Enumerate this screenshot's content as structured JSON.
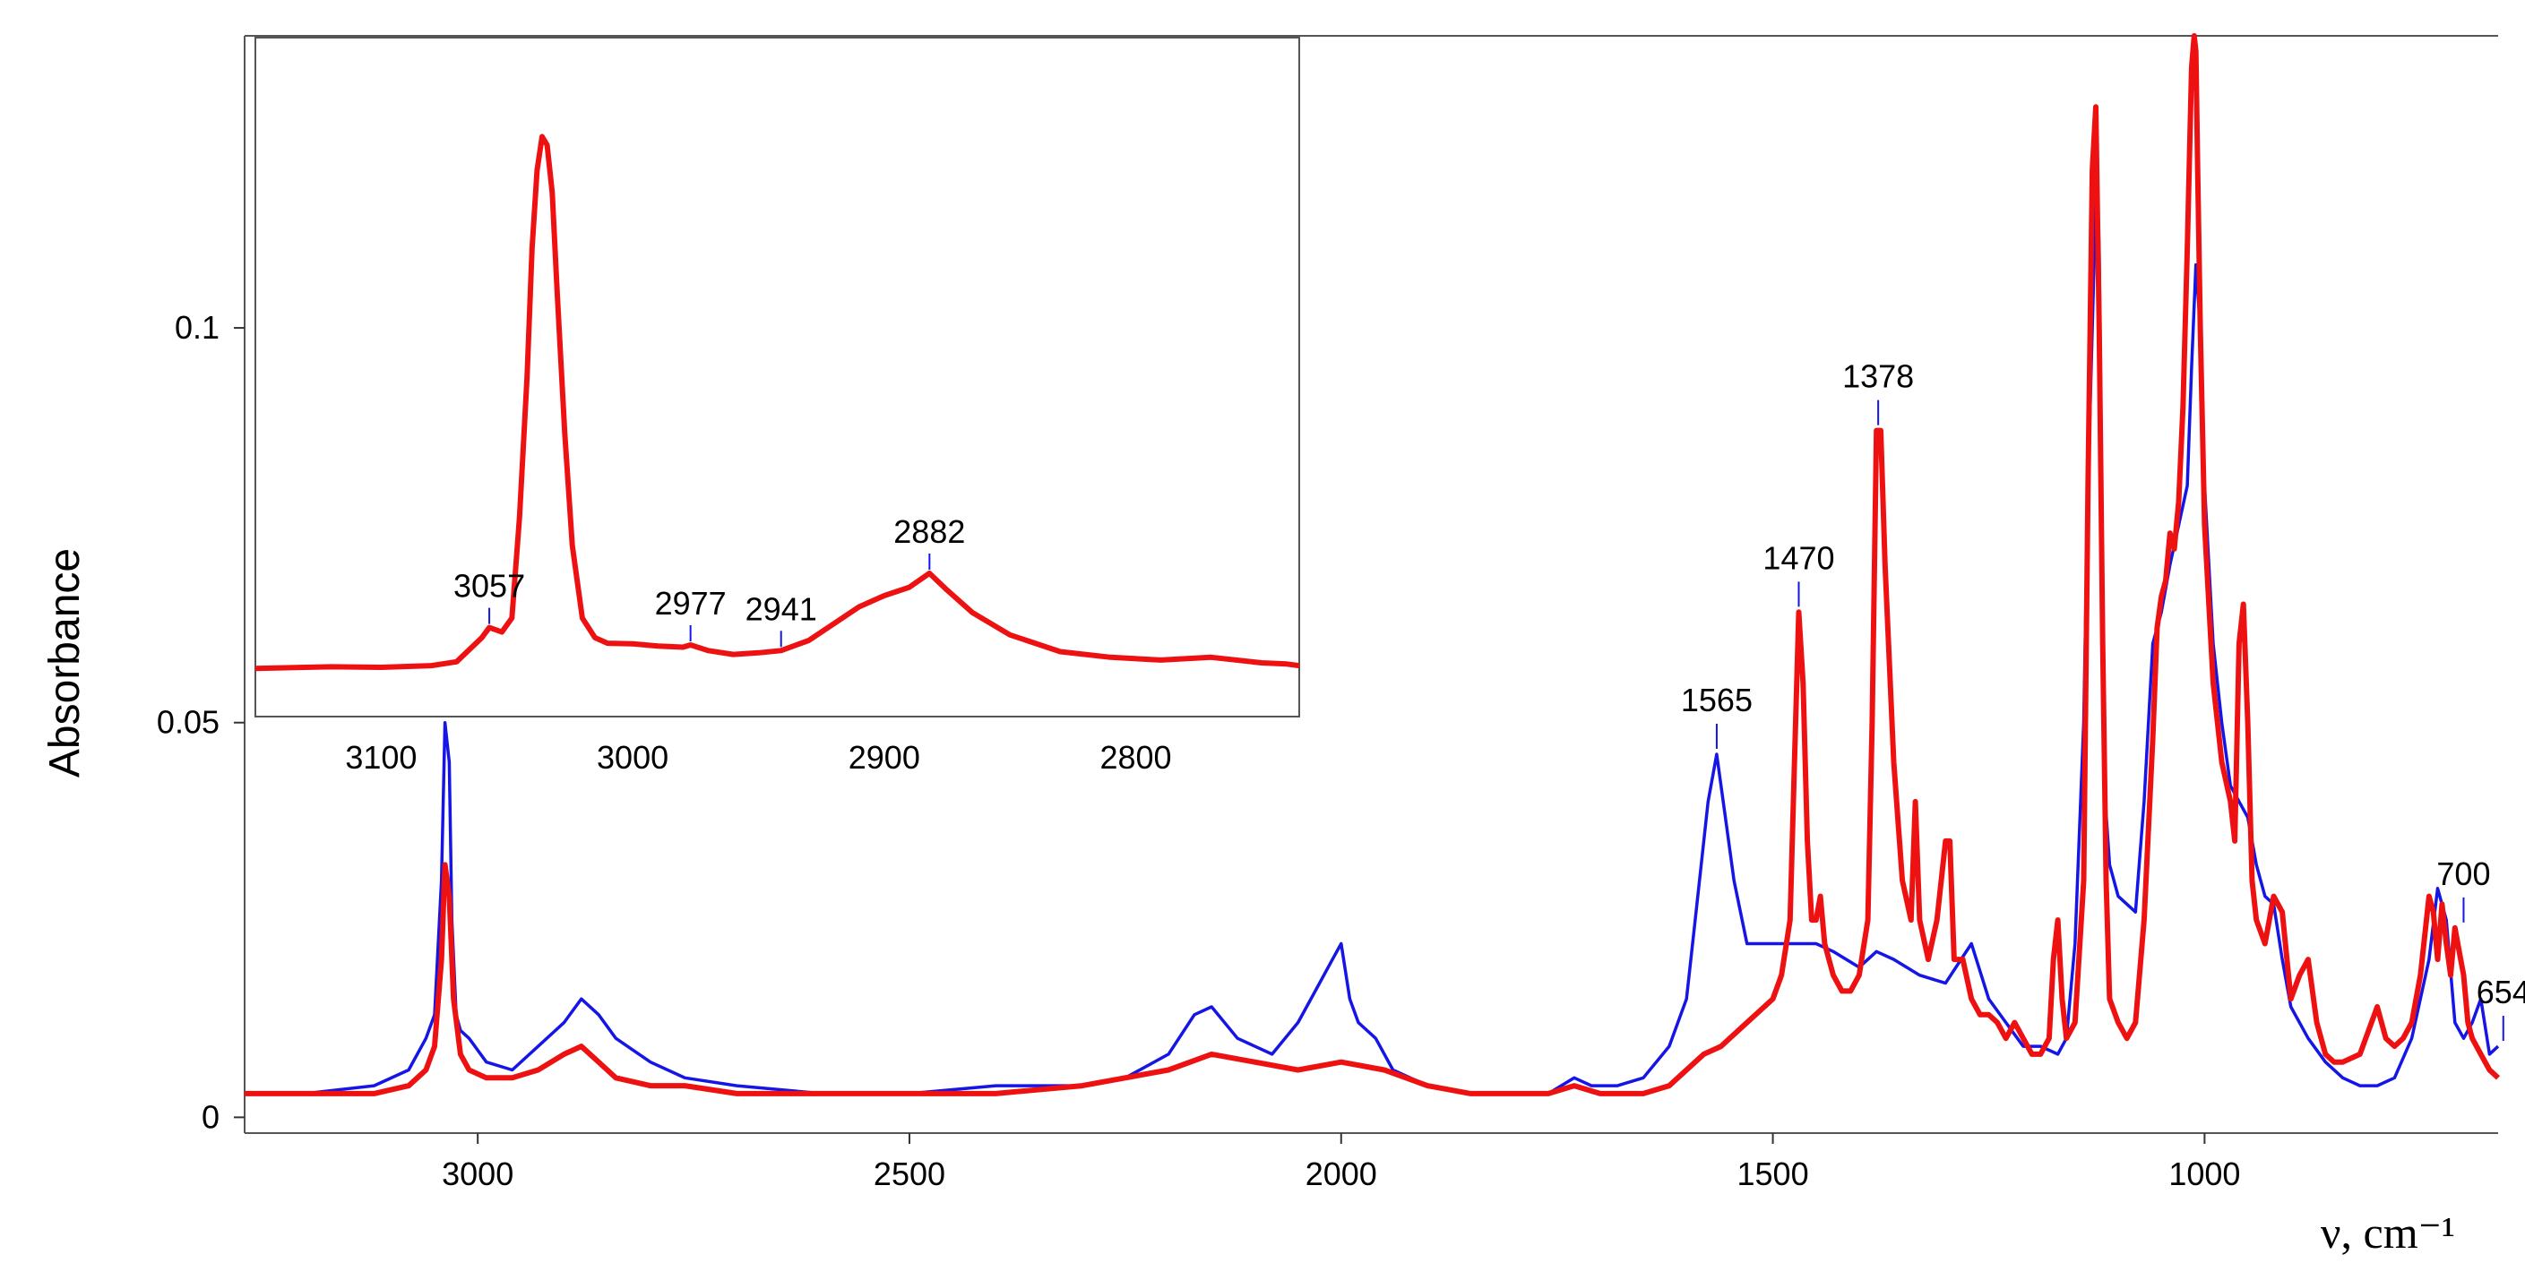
{
  "chart_data": [
    {
      "id": "main",
      "type": "line",
      "title": "",
      "xlabel": "ν, cm⁻¹",
      "ylabel": "Absorbance",
      "xlim": [
        3270,
        660
      ],
      "ylim": [
        -0.002,
        0.137
      ],
      "xticks": [
        3000,
        2500,
        2000,
        1500,
        1000
      ],
      "yticks": [
        0,
        0.05,
        0.1
      ],
      "ytick_labels": [
        "0",
        "0.05",
        "0.1"
      ],
      "grid": false,
      "legend": "none",
      "series": [
        {
          "color": "#1515e6",
          "x": [
            3270,
            3200,
            3120,
            3080,
            3060,
            3050,
            3042,
            3038,
            3033,
            3030,
            3025,
            3020,
            3010,
            2990,
            2960,
            2930,
            2900,
            2880,
            2860,
            2840,
            2800,
            2760,
            2700,
            2600,
            2500,
            2400,
            2300,
            2250,
            2200,
            2170,
            2150,
            2120,
            2080,
            2050,
            2030,
            2010,
            2000,
            1990,
            1980,
            1960,
            1940,
            1900,
            1850,
            1800,
            1760,
            1730,
            1710,
            1680,
            1650,
            1620,
            1600,
            1590,
            1580,
            1575,
            1565,
            1555,
            1545,
            1530,
            1500,
            1470,
            1450,
            1430,
            1400,
            1380,
            1360,
            1330,
            1300,
            1270,
            1250,
            1230,
            1210,
            1190,
            1170,
            1160,
            1150,
            1140,
            1135,
            1130,
            1125,
            1122,
            1120,
            1118,
            1115,
            1110,
            1100,
            1090,
            1080,
            1070,
            1060,
            1050,
            1040,
            1030,
            1020,
            1015,
            1010,
            1005,
            1000,
            990,
            980,
            970,
            960,
            950,
            940,
            930,
            920,
            910,
            900,
            880,
            860,
            840,
            820,
            800,
            780,
            760,
            740,
            730,
            720,
            710,
            700,
            690,
            680,
            670,
            660
          ],
          "y": [
            0.003,
            0.003,
            0.004,
            0.006,
            0.01,
            0.013,
            0.03,
            0.05,
            0.045,
            0.025,
            0.013,
            0.011,
            0.01,
            0.007,
            0.006,
            0.009,
            0.012,
            0.015,
            0.013,
            0.01,
            0.007,
            0.005,
            0.004,
            0.003,
            0.003,
            0.004,
            0.004,
            0.005,
            0.008,
            0.013,
            0.014,
            0.01,
            0.008,
            0.012,
            0.016,
            0.02,
            0.022,
            0.015,
            0.012,
            0.01,
            0.006,
            0.004,
            0.003,
            0.003,
            0.003,
            0.005,
            0.004,
            0.004,
            0.005,
            0.009,
            0.015,
            0.025,
            0.035,
            0.04,
            0.046,
            0.038,
            0.03,
            0.022,
            0.022,
            0.022,
            0.022,
            0.021,
            0.019,
            0.021,
            0.02,
            0.018,
            0.017,
            0.022,
            0.015,
            0.012,
            0.009,
            0.009,
            0.008,
            0.01,
            0.022,
            0.05,
            0.08,
            0.1,
            0.12,
            0.11,
            0.09,
            0.06,
            0.04,
            0.032,
            0.028,
            0.027,
            0.026,
            0.04,
            0.06,
            0.064,
            0.07,
            0.075,
            0.08,
            0.095,
            0.108,
            0.1,
            0.08,
            0.06,
            0.05,
            0.042,
            0.04,
            0.038,
            0.032,
            0.028,
            0.027,
            0.02,
            0.014,
            0.01,
            0.007,
            0.005,
            0.004,
            0.004,
            0.005,
            0.01,
            0.02,
            0.029,
            0.025,
            0.012,
            0.01,
            0.012,
            0.015,
            0.008,
            0.009
          ]
        },
        {
          "color": "#ee1111",
          "x": [
            3270,
            3200,
            3120,
            3080,
            3060,
            3050,
            3042,
            3038,
            3033,
            3028,
            3020,
            3010,
            2990,
            2960,
            2930,
            2900,
            2880,
            2860,
            2840,
            2800,
            2760,
            2700,
            2600,
            2500,
            2400,
            2300,
            2200,
            2150,
            2100,
            2050,
            2000,
            1950,
            1900,
            1850,
            1800,
            1760,
            1730,
            1700,
            1650,
            1620,
            1600,
            1580,
            1560,
            1540,
            1520,
            1500,
            1490,
            1480,
            1475,
            1470,
            1465,
            1460,
            1455,
            1450,
            1445,
            1440,
            1430,
            1420,
            1410,
            1400,
            1390,
            1385,
            1380,
            1375,
            1370,
            1360,
            1350,
            1340,
            1335,
            1330,
            1320,
            1310,
            1300,
            1295,
            1290,
            1280,
            1270,
            1260,
            1250,
            1240,
            1230,
            1220,
            1210,
            1200,
            1190,
            1180,
            1175,
            1170,
            1165,
            1160,
            1150,
            1140,
            1135,
            1130,
            1126,
            1122,
            1118,
            1114,
            1110,
            1100,
            1090,
            1080,
            1070,
            1060,
            1055,
            1050,
            1045,
            1040,
            1035,
            1030,
            1025,
            1020,
            1015,
            1012,
            1010,
            1008,
            1005,
            1000,
            990,
            980,
            970,
            965,
            960,
            955,
            950,
            945,
            940,
            930,
            920,
            910,
            900,
            890,
            880,
            870,
            860,
            850,
            840,
            820,
            800,
            790,
            780,
            770,
            760,
            750,
            740,
            735,
            730,
            725,
            720,
            715,
            710,
            705,
            700,
            695,
            690,
            680,
            670,
            660
          ],
          "y": [
            0.003,
            0.003,
            0.003,
            0.004,
            0.006,
            0.009,
            0.02,
            0.032,
            0.028,
            0.015,
            0.008,
            0.006,
            0.005,
            0.005,
            0.006,
            0.008,
            0.009,
            0.007,
            0.005,
            0.004,
            0.004,
            0.003,
            0.003,
            0.003,
            0.003,
            0.004,
            0.006,
            0.008,
            0.007,
            0.006,
            0.007,
            0.006,
            0.004,
            0.003,
            0.003,
            0.003,
            0.004,
            0.003,
            0.003,
            0.004,
            0.006,
            0.008,
            0.009,
            0.011,
            0.013,
            0.015,
            0.018,
            0.025,
            0.045,
            0.064,
            0.055,
            0.035,
            0.025,
            0.025,
            0.028,
            0.022,
            0.018,
            0.016,
            0.016,
            0.018,
            0.025,
            0.05,
            0.087,
            0.087,
            0.07,
            0.045,
            0.03,
            0.025,
            0.04,
            0.025,
            0.02,
            0.025,
            0.035,
            0.035,
            0.02,
            0.02,
            0.015,
            0.013,
            0.013,
            0.012,
            0.01,
            0.012,
            0.01,
            0.008,
            0.008,
            0.01,
            0.02,
            0.025,
            0.015,
            0.01,
            0.012,
            0.03,
            0.08,
            0.12,
            0.128,
            0.1,
            0.06,
            0.03,
            0.015,
            0.012,
            0.01,
            0.012,
            0.025,
            0.048,
            0.062,
            0.066,
            0.068,
            0.074,
            0.072,
            0.078,
            0.09,
            0.11,
            0.133,
            0.137,
            0.135,
            0.12,
            0.1,
            0.075,
            0.055,
            0.045,
            0.04,
            0.035,
            0.06,
            0.065,
            0.05,
            0.03,
            0.025,
            0.022,
            0.028,
            0.026,
            0.015,
            0.018,
            0.02,
            0.012,
            0.008,
            0.007,
            0.007,
            0.008,
            0.014,
            0.01,
            0.009,
            0.01,
            0.012,
            0.018,
            0.028,
            0.026,
            0.02,
            0.027,
            0.022,
            0.018,
            0.024,
            0.021,
            0.018,
            0.012,
            0.01,
            0.008,
            0.006,
            0.005
          ]
        }
      ],
      "annotations": [
        {
          "x": 1565,
          "label": "1565"
        },
        {
          "x": 1470,
          "label": "1470"
        },
        {
          "x": 1378,
          "label": "1378"
        },
        {
          "x": 700,
          "label": "700"
        },
        {
          "x": 654,
          "label": "654"
        }
      ]
    },
    {
      "id": "inset",
      "type": "line",
      "title": "",
      "xlim": [
        3150,
        2735
      ],
      "ylim": [
        0,
        1
      ],
      "xticks": [
        3100,
        3000,
        2900,
        2800
      ],
      "grid": false,
      "legend": "none",
      "series": [
        {
          "color": "#ee1111",
          "x": [
            3150,
            3120,
            3100,
            3080,
            3070,
            3060,
            3057,
            3052,
            3048,
            3045,
            3042,
            3040,
            3038,
            3036,
            3034,
            3032,
            3030,
            3027,
            3024,
            3020,
            3015,
            3010,
            3000,
            2990,
            2980,
            2977,
            2970,
            2960,
            2950,
            2941,
            2930,
            2920,
            2910,
            2900,
            2890,
            2882,
            2875,
            2865,
            2850,
            2830,
            2810,
            2790,
            2770,
            2750,
            2740,
            2735
          ],
          "y": [
            0.03,
            0.033,
            0.032,
            0.035,
            0.042,
            0.085,
            0.103,
            0.095,
            0.12,
            0.3,
            0.55,
            0.78,
            0.92,
            0.98,
            0.965,
            0.88,
            0.7,
            0.45,
            0.25,
            0.12,
            0.085,
            0.075,
            0.074,
            0.07,
            0.068,
            0.072,
            0.062,
            0.055,
            0.058,
            0.062,
            0.08,
            0.11,
            0.14,
            0.16,
            0.175,
            0.2,
            0.17,
            0.13,
            0.09,
            0.06,
            0.05,
            0.045,
            0.05,
            0.04,
            0.038,
            0.035
          ]
        }
      ],
      "annotations": [
        {
          "x": 3057,
          "label": "3057"
        },
        {
          "x": 2977,
          "label": "2977"
        },
        {
          "x": 2941,
          "label": "2941"
        },
        {
          "x": 2882,
          "label": "2882"
        }
      ]
    }
  ]
}
